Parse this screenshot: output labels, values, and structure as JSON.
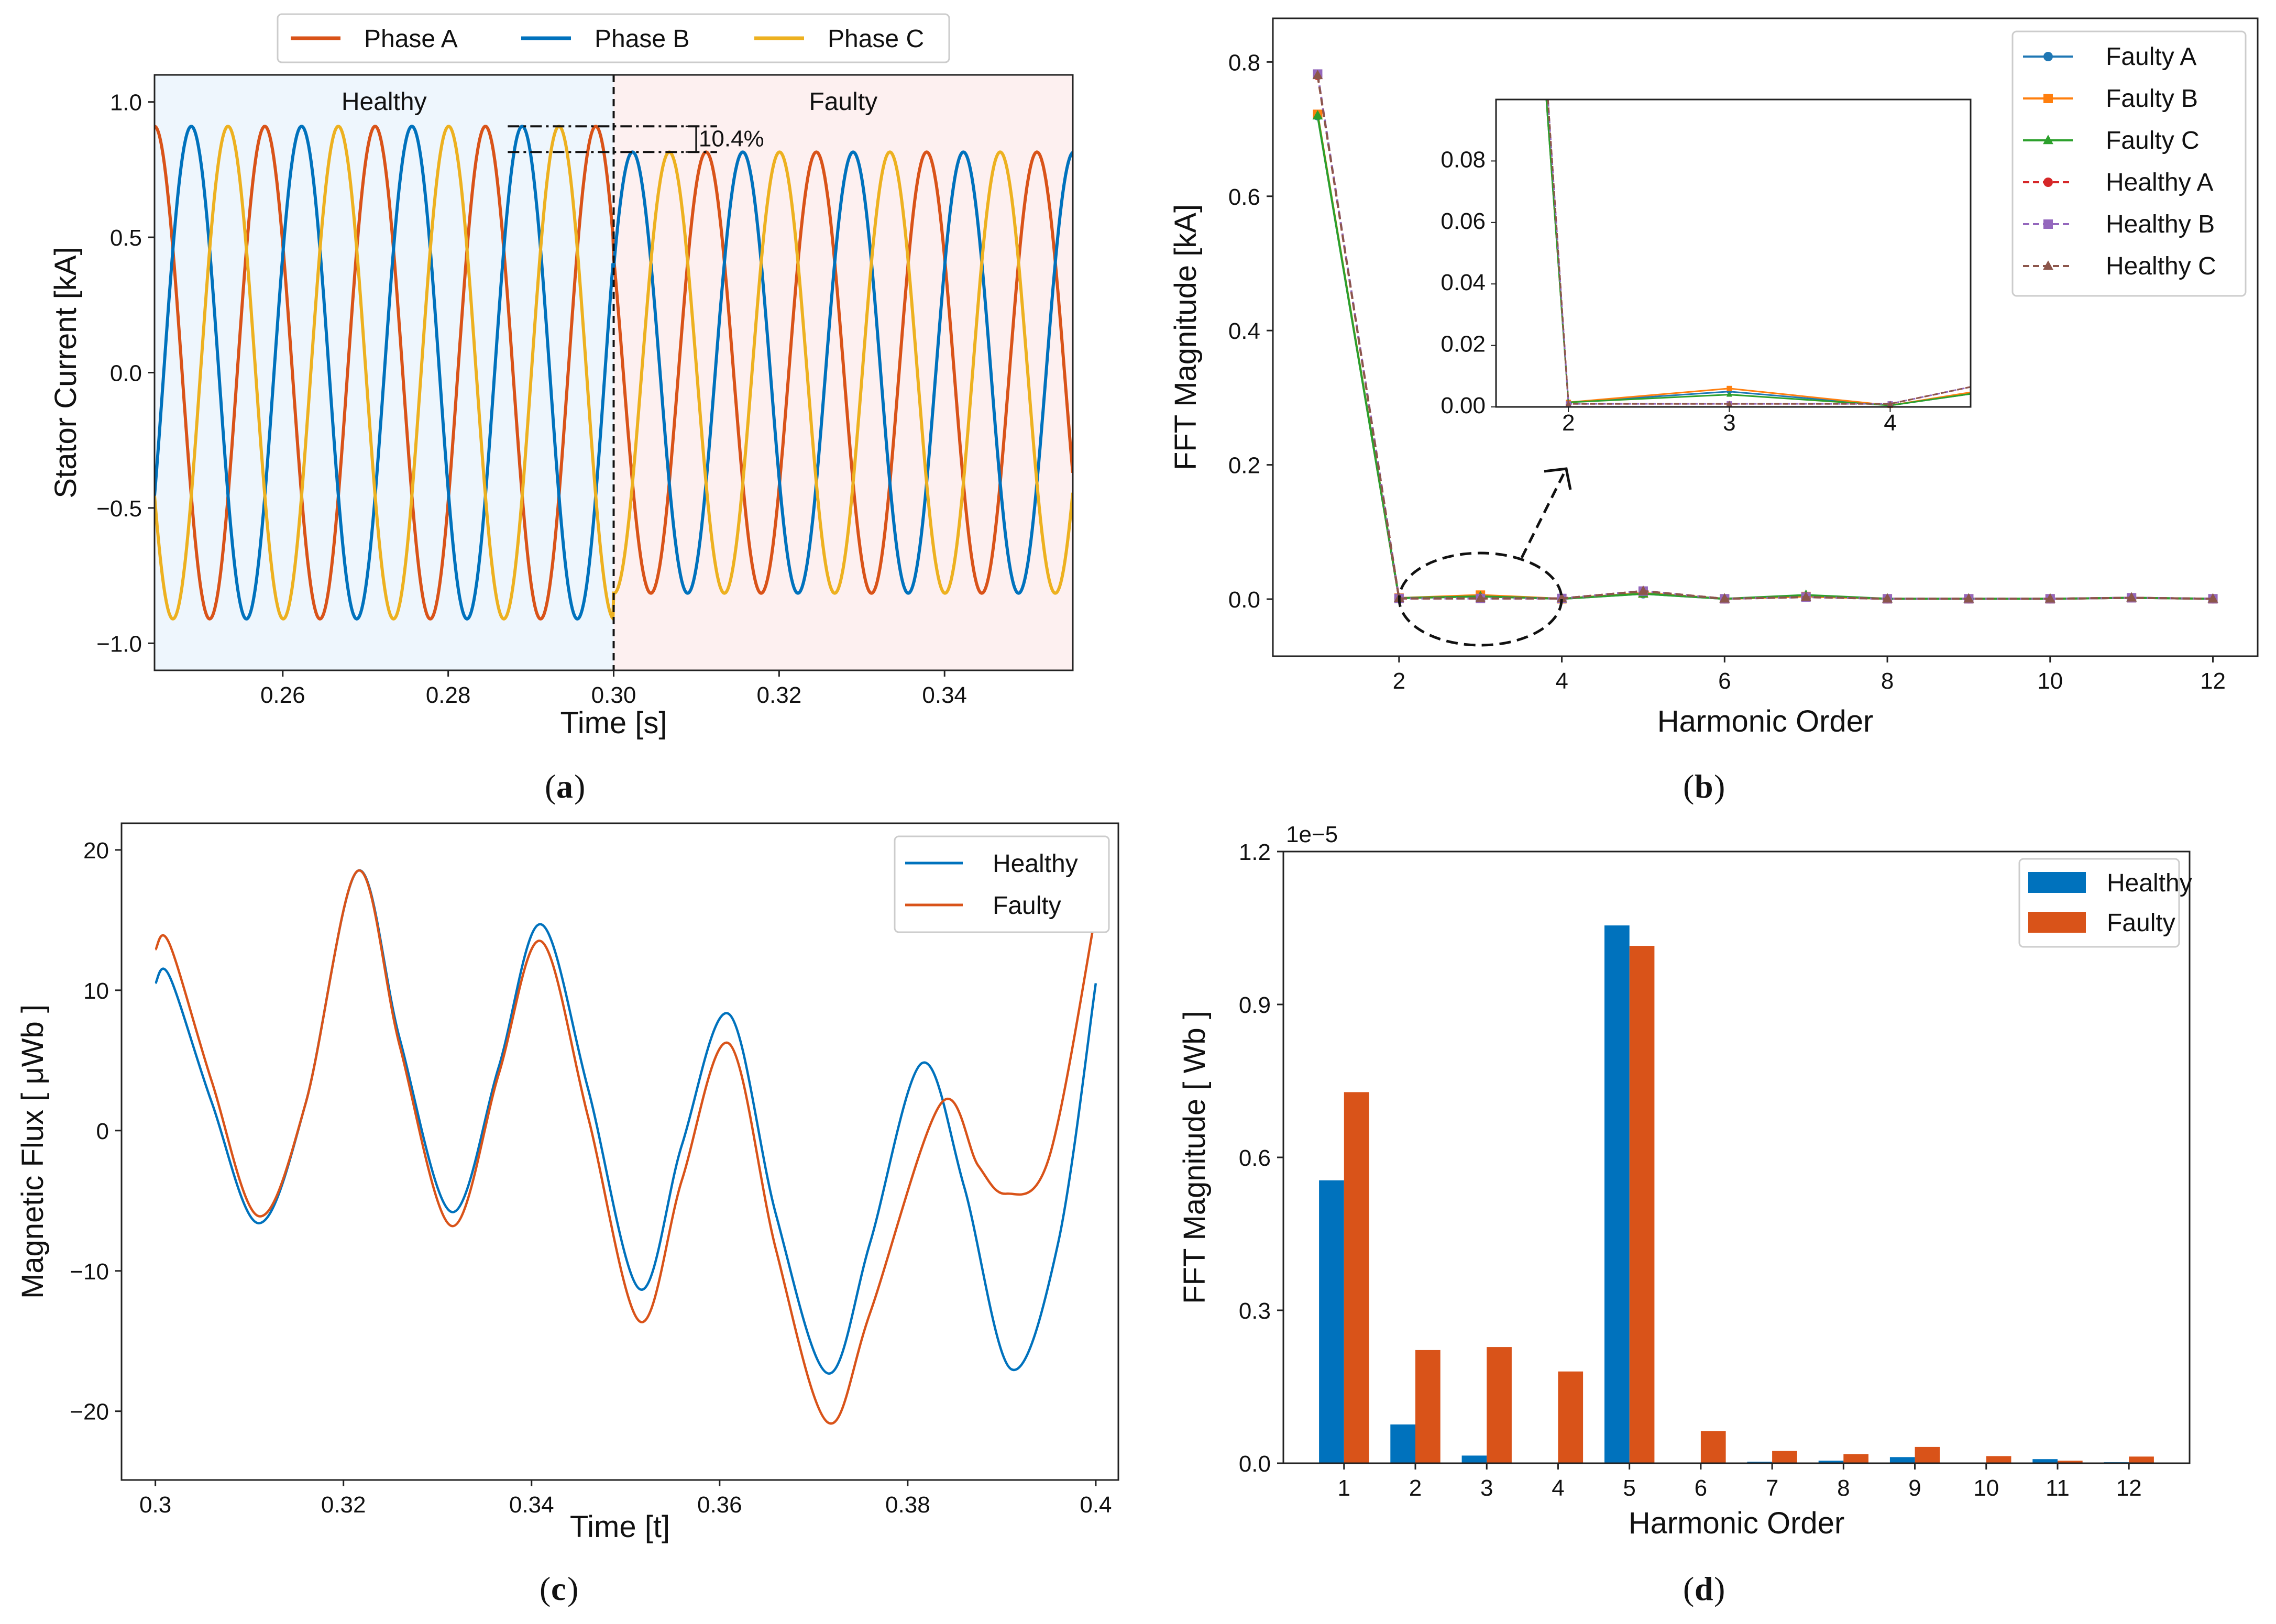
{
  "panel_labels": [
    "a",
    "b",
    "c",
    "d"
  ],
  "colors": {
    "orange": "#d95319",
    "blue": "#0072bd",
    "yellow": "#edb120",
    "green": "#2ca02c",
    "red": "#d62728",
    "purple": "#9467bd",
    "brown": "#8c564b",
    "tab_blue": "#1f77b4",
    "tab_orange": "#ff7f0e"
  },
  "chart_data": [
    {
      "id": "a",
      "type": "line",
      "title": "",
      "xlabel": "Time [s]",
      "ylabel": "Stator  Current  [kA]",
      "xlim": [
        0.2445,
        0.3555
      ],
      "ylim": [
        -1.1,
        1.1
      ],
      "xticks": [
        0.26,
        0.28,
        0.3,
        0.32,
        0.34
      ],
      "xtick_labels": [
        "0.26",
        "0.28",
        "0.30",
        "0.32",
        "0.34"
      ],
      "yticks": [
        1.0,
        0.5,
        0.0,
        -0.5,
        -1.0
      ],
      "ytick_labels": [
        "1.0",
        "0.5",
        "0.0",
        "−0.5",
        "−1.0"
      ],
      "frequency_hz": 75,
      "healthy_amplitude": 0.91,
      "faulty_amplitude": 0.815,
      "fault_time": 0.3,
      "series": [
        {
          "name": "Phase A",
          "phase_deg": 90,
          "color": "#d95319"
        },
        {
          "name": "Phase B",
          "phase_deg": -30,
          "color": "#0072bd"
        },
        {
          "name": "Phase C",
          "phase_deg": 210,
          "color": "#edb120"
        }
      ],
      "regions": [
        {
          "label": "Healthy",
          "from": 0.2445,
          "to": 0.3
        },
        {
          "label": "Faulty",
          "from": 0.3,
          "to": 0.3555
        }
      ],
      "annotation": "10.4%",
      "legend_position": "top-center"
    },
    {
      "id": "b",
      "type": "line",
      "xlabel": "Harmonic Order",
      "ylabel": "FFT  Magnitude  [kA]",
      "xlim": [
        0.45,
        12.55
      ],
      "ylim": [
        -0.085,
        0.865
      ],
      "xticks": [
        2,
        4,
        6,
        8,
        10,
        12
      ],
      "xtick_labels": [
        "2",
        "4",
        "6",
        "8",
        "10",
        "12"
      ],
      "yticks": [
        0.0,
        0.2,
        0.4,
        0.6,
        0.8
      ],
      "ytick_labels": [
        "0.0",
        "0.2",
        "0.4",
        "0.6",
        "0.8"
      ],
      "x": [
        1,
        2,
        3,
        4,
        5,
        6,
        7,
        8,
        9,
        10,
        11,
        12
      ],
      "series": [
        {
          "name": "Faulty A",
          "marker": "circle",
          "dashed": false,
          "color": "#1f77b4",
          "values": [
            0.72,
            0.0015,
            0.005,
            0.0005,
            0.008,
            0.0005,
            0.004,
            0.0005,
            0.0005,
            0.0005,
            0.002,
            0.0005
          ]
        },
        {
          "name": "Faulty B",
          "marker": "square",
          "dashed": false,
          "color": "#ff7f0e",
          "values": [
            0.722,
            0.0015,
            0.006,
            0.0005,
            0.009,
            0.0005,
            0.004,
            0.0005,
            0.0005,
            0.0005,
            0.002,
            0.0005
          ]
        },
        {
          "name": "Faulty C",
          "marker": "triangle",
          "dashed": false,
          "color": "#2ca02c",
          "values": [
            0.72,
            0.0015,
            0.004,
            0.0005,
            0.008,
            0.0005,
            0.006,
            0.0005,
            0.0005,
            0.0005,
            0.002,
            0.0005
          ]
        },
        {
          "name": "Healthy A",
          "marker": "circle",
          "dashed": true,
          "color": "#d62728",
          "values": [
            0.78,
            0.001,
            0.001,
            0.001,
            0.012,
            0.0005,
            0.003,
            0.0005,
            0.0005,
            0.0005,
            0.002,
            0.0005
          ]
        },
        {
          "name": "Healthy B",
          "marker": "square",
          "dashed": true,
          "color": "#9467bd",
          "values": [
            0.782,
            0.001,
            0.001,
            0.001,
            0.012,
            0.0005,
            0.003,
            0.0005,
            0.0005,
            0.0005,
            0.002,
            0.0005
          ]
        },
        {
          "name": "Healthy C",
          "marker": "triangle",
          "dashed": true,
          "color": "#8c564b",
          "values": [
            0.78,
            0.001,
            0.001,
            0.001,
            0.012,
            0.0005,
            0.003,
            0.0005,
            0.0005,
            0.0005,
            0.002,
            0.0005
          ]
        }
      ],
      "inset": {
        "xlim": [
          1.55,
          4.5
        ],
        "ylim": [
          0,
          0.1
        ],
        "xticks": [
          2,
          3,
          4
        ],
        "xtick_labels": [
          "2",
          "3",
          "4"
        ],
        "yticks": [
          0.0,
          0.02,
          0.04,
          0.06,
          0.08
        ],
        "ytick_labels": [
          "0.00",
          "0.02",
          "0.04",
          "0.06",
          "0.08"
        ]
      },
      "legend_position": "top-right"
    },
    {
      "id": "c",
      "type": "line",
      "xlabel": "Time [t]",
      "ylabel": "Magnetic Flux [ μWb ]",
      "xlim": [
        0.2964,
        0.4024
      ],
      "ylim": [
        -24.9,
        21.9
      ],
      "xticks": [
        0.3,
        0.32,
        0.34,
        0.36,
        0.38,
        0.4
      ],
      "xtick_labels": [
        "0.3",
        "0.32",
        "0.34",
        "0.36",
        "0.38",
        "0.4"
      ],
      "yticks": [
        20,
        10,
        0,
        -10,
        -20
      ],
      "ytick_labels": [
        "20",
        "10",
        "0",
        "−10",
        "−20"
      ],
      "series": [
        {
          "name": "Healthy",
          "color": "#0072bd",
          "x": [
            0.3,
            0.3015,
            0.306,
            0.311,
            0.316,
            0.3215,
            0.326,
            0.3315,
            0.3365,
            0.341,
            0.346,
            0.3515,
            0.356,
            0.361,
            0.366,
            0.3715,
            0.376,
            0.3815,
            0.386,
            0.391,
            0.396,
            0.4
          ],
          "y": [
            10.5,
            11.0,
            2.0,
            -6.6,
            2.0,
            18.5,
            6.5,
            -5.8,
            4.5,
            14.7,
            3.0,
            -11.3,
            -1.0,
            8.3,
            -6.0,
            -17.3,
            -8.0,
            4.8,
            -4.0,
            -17.0,
            -8.0,
            10.5
          ]
        },
        {
          "name": "Faulty",
          "color": "#d95319",
          "x": [
            0.3,
            0.3015,
            0.306,
            0.311,
            0.316,
            0.3215,
            0.326,
            0.3315,
            0.3365,
            0.341,
            0.346,
            0.3515,
            0.356,
            0.361,
            0.366,
            0.3715,
            0.376,
            0.3835,
            0.3875,
            0.3905,
            0.395,
            0.4
          ],
          "y": [
            12.9,
            13.3,
            3.5,
            -6.1,
            2.0,
            18.5,
            6.0,
            -6.8,
            4.0,
            13.5,
            1.0,
            -13.6,
            -3.5,
            6.2,
            -8.5,
            -20.8,
            -13.0,
            1.9,
            -2.5,
            -4.5,
            -2.0,
            15.5
          ]
        }
      ],
      "legend_position": "top-right"
    },
    {
      "id": "d",
      "type": "bar",
      "xlabel": "Harmonic Order",
      "ylabel": "FFT  Magnitude  [ Wb ]",
      "offset_label": "1e−5",
      "categories": [
        "1",
        "2",
        "3",
        "4",
        "5",
        "6",
        "7",
        "8",
        "9",
        "10",
        "11",
        "12"
      ],
      "ylim": [
        0,
        1.2
      ],
      "yticks": [
        0.0,
        0.3,
        0.6,
        0.9,
        1.2
      ],
      "ytick_labels": [
        "0.0",
        "0.3",
        "0.6",
        "0.9",
        "1.2"
      ],
      "series": [
        {
          "name": "Healthy",
          "color": "#0072bd",
          "values": [
            0.555,
            0.076,
            0.015,
            0.0,
            1.055,
            0.0,
            0.003,
            0.005,
            0.012,
            0.0,
            0.008,
            0.002
          ]
        },
        {
          "name": "Faulty",
          "color": "#d95319",
          "values": [
            0.728,
            0.222,
            0.228,
            0.18,
            1.015,
            0.063,
            0.024,
            0.018,
            0.032,
            0.014,
            0.005,
            0.013
          ]
        }
      ],
      "legend_position": "top-right"
    }
  ]
}
